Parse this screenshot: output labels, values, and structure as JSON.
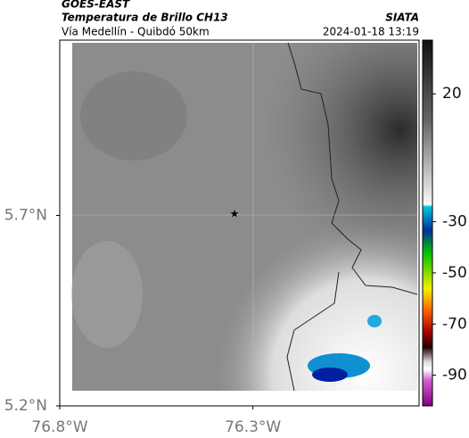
{
  "header": {
    "product": "GOES-EAST",
    "title": "Temperatura de Brillo CH13",
    "subtitle": "Vía Medellín - Quibdó 50km",
    "source": "SIATA",
    "datetime": "2024-01-18 13:19"
  },
  "map": {
    "xlim": [
      -76.8,
      -75.87
    ],
    "ylim": [
      5.2,
      6.16
    ],
    "xticks": [
      {
        "value": -76.8,
        "label": "76.8°W"
      },
      {
        "value": -76.3,
        "label": "76.3°W"
      }
    ],
    "yticks": [
      {
        "value": 5.7,
        "label": "5.7°N"
      },
      {
        "value": 5.2,
        "label": "5.2°N"
      }
    ]
  },
  "colorbar": {
    "lim": [
      -102,
      41
    ],
    "ticks": [
      20,
      -30,
      -50,
      -70,
      -90
    ]
  }
}
